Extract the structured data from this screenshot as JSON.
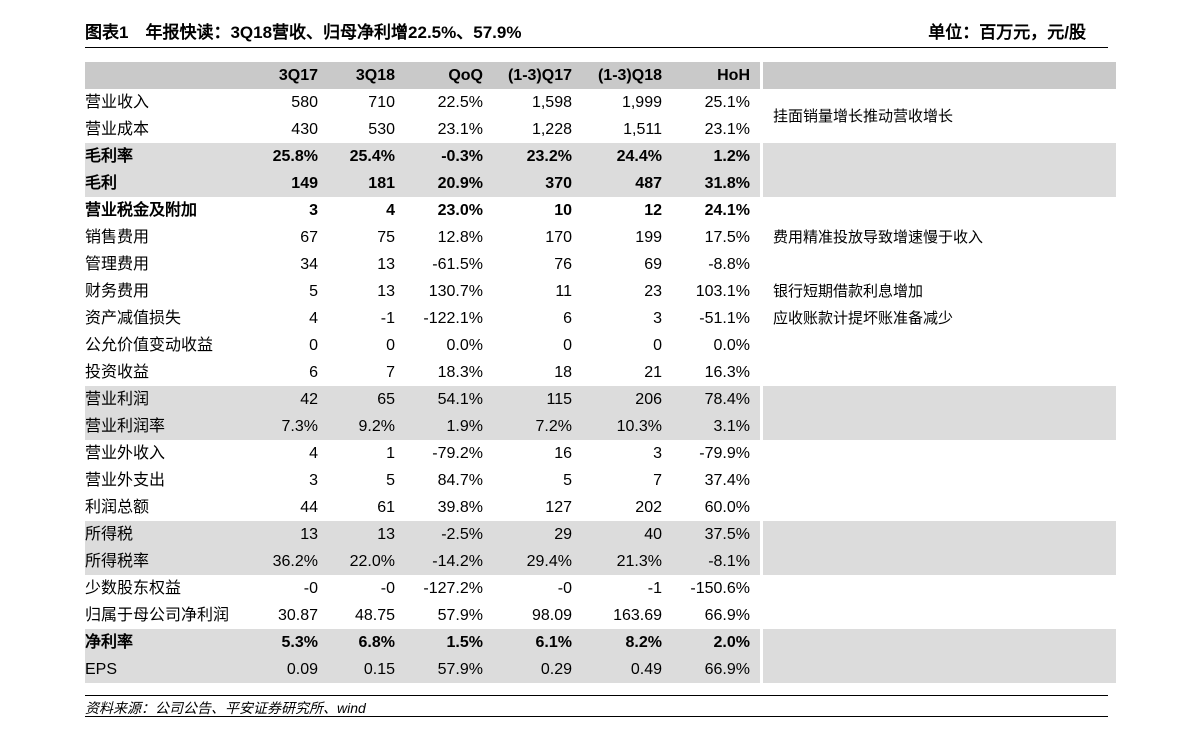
{
  "header": {
    "title": "图表1　年报快读：3Q18营收、归母净利增22.5%、57.9%",
    "unit": "单位：百万元，元/股"
  },
  "table": {
    "columns": [
      "3Q17",
      "3Q18",
      "QoQ",
      "(1-3)Q17",
      "(1-3)Q18",
      "HoH"
    ],
    "rows": [
      {
        "label": "营业收入",
        "cells": [
          "580",
          "710",
          "22.5%",
          "1,598",
          "1,999",
          "25.1%"
        ],
        "note": "挂面销量增长推动营收增长"
      },
      {
        "label": "营业成本",
        "cells": [
          "430",
          "530",
          "23.1%",
          "1,228",
          "1,511",
          "23.1%"
        ]
      },
      {
        "label": "毛利率",
        "cells": [
          "25.8%",
          "25.4%",
          "-0.3%",
          "23.2%",
          "24.4%",
          "1.2%"
        ],
        "shaded": true,
        "bold": true
      },
      {
        "label": "毛利",
        "cells": [
          "149",
          "181",
          "20.9%",
          "370",
          "487",
          "31.8%"
        ],
        "shaded": true,
        "bold": true
      },
      {
        "label": "营业税金及附加",
        "cells": [
          "3",
          "4",
          "23.0%",
          "10",
          "12",
          "24.1%"
        ],
        "bold": true
      },
      {
        "label": "销售费用",
        "cells": [
          "67",
          "75",
          "12.8%",
          "170",
          "199",
          "17.5%"
        ],
        "note": "费用精准投放导致增速慢于收入"
      },
      {
        "label": "管理费用",
        "cells": [
          "34",
          "13",
          "-61.5%",
          "76",
          "69",
          "-8.8%"
        ]
      },
      {
        "label": "财务费用",
        "cells": [
          "5",
          "13",
          "130.7%",
          "11",
          "23",
          "103.1%"
        ],
        "note": "银行短期借款利息增加"
      },
      {
        "label": "资产减值损失",
        "cells": [
          "4",
          "-1",
          "-122.1%",
          "6",
          "3",
          "-51.1%"
        ],
        "note": "应收账款计提坏账准备减少"
      },
      {
        "label": "公允价值变动收益",
        "cells": [
          "0",
          "0",
          "0.0%",
          "0",
          "0",
          "0.0%"
        ]
      },
      {
        "label": "投资收益",
        "cells": [
          "6",
          "7",
          "18.3%",
          "18",
          "21",
          "16.3%"
        ]
      },
      {
        "label": "营业利润",
        "cells": [
          "42",
          "65",
          "54.1%",
          "115",
          "206",
          "78.4%"
        ],
        "shaded": true
      },
      {
        "label": "营业利润率",
        "cells": [
          "7.3%",
          "9.2%",
          "1.9%",
          "7.2%",
          "10.3%",
          "3.1%"
        ],
        "shaded": true
      },
      {
        "label": "营业外收入",
        "cells": [
          "4",
          "1",
          "-79.2%",
          "16",
          "3",
          "-79.9%"
        ]
      },
      {
        "label": "营业外支出",
        "cells": [
          "3",
          "5",
          "84.7%",
          "5",
          "7",
          "37.4%"
        ]
      },
      {
        "label": "利润总额",
        "cells": [
          "44",
          "61",
          "39.8%",
          "127",
          "202",
          "60.0%"
        ]
      },
      {
        "label": "所得税",
        "cells": [
          "13",
          "13",
          "-2.5%",
          "29",
          "40",
          "37.5%"
        ],
        "shaded": true
      },
      {
        "label": "所得税率",
        "cells": [
          "36.2%",
          "22.0%",
          "-14.2%",
          "29.4%",
          "21.3%",
          "-8.1%"
        ],
        "shaded": true
      },
      {
        "label": "少数股东权益",
        "cells": [
          "-0",
          "-0",
          "-127.2%",
          "-0",
          "-1",
          "-150.6%"
        ]
      },
      {
        "label": "归属于母公司净利润",
        "cells": [
          "30.87",
          "48.75",
          "57.9%",
          "98.09",
          "163.69",
          "66.9%"
        ]
      },
      {
        "label": "净利率",
        "cells": [
          "5.3%",
          "6.8%",
          "1.5%",
          "6.1%",
          "8.2%",
          "2.0%"
        ],
        "shaded": true,
        "bold": true
      },
      {
        "label": "EPS",
        "cells": [
          "0.09",
          "0.15",
          "57.9%",
          "0.29",
          "0.49",
          "66.9%"
        ],
        "shaded": true
      }
    ]
  },
  "footer": {
    "source": "资料来源：公司公告、平安证券研究所、wind"
  }
}
